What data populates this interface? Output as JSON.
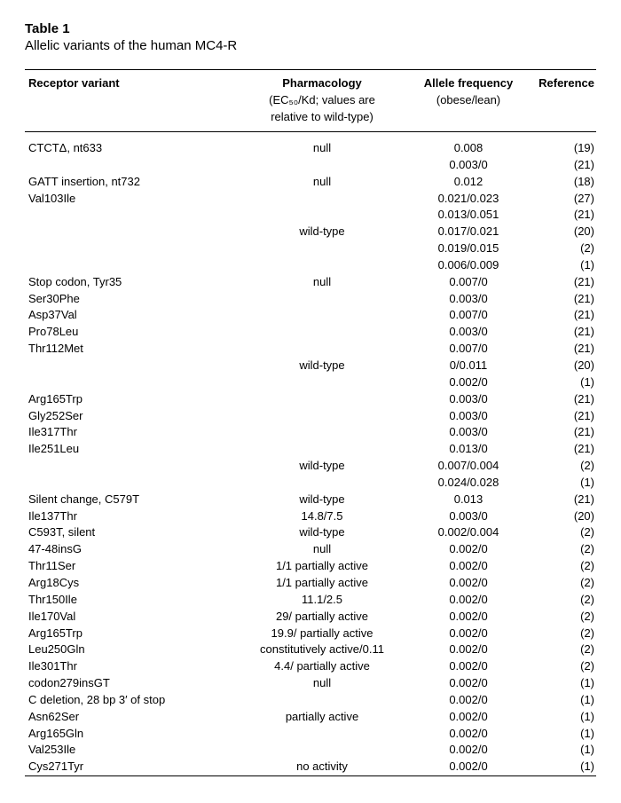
{
  "table": {
    "label": "Table 1",
    "caption": "Allelic variants of the human MC4-R",
    "headers": {
      "variant": "Receptor variant",
      "pharm": "Pharmacology",
      "pharm_sub1": "(EC₅₀/Kd; values are",
      "pharm_sub2": "relative to wild-type)",
      "freq": "Allele frequency",
      "freq_sub": "(obese/lean)",
      "ref": "Reference"
    },
    "rows": [
      {
        "variant": "CTCTΔ, nt633",
        "pharm": "null",
        "freq": "0.008",
        "ref": "(19)"
      },
      {
        "variant": "",
        "pharm": "",
        "freq": "0.003/0",
        "ref": "(21)"
      },
      {
        "variant": "GATT insertion, nt732",
        "pharm": "null",
        "freq": "0.012",
        "ref": "(18)"
      },
      {
        "variant": "Val103Ile",
        "pharm": "",
        "freq": "0.021/0.023",
        "ref": "(27)"
      },
      {
        "variant": "",
        "pharm": "",
        "freq": "0.013/0.051",
        "ref": "(21)"
      },
      {
        "variant": "",
        "pharm": "wild-type",
        "freq": "0.017/0.021",
        "ref": "(20)"
      },
      {
        "variant": "",
        "pharm": "",
        "freq": "0.019/0.015",
        "ref": "(2)"
      },
      {
        "variant": "",
        "pharm": "",
        "freq": "0.006/0.009",
        "ref": "(1)"
      },
      {
        "variant": "Stop codon, Tyr35",
        "pharm": "null",
        "freq": "0.007/0",
        "ref": "(21)"
      },
      {
        "variant": "Ser30Phe",
        "pharm": "",
        "freq": "0.003/0",
        "ref": "(21)"
      },
      {
        "variant": "Asp37Val",
        "pharm": "",
        "freq": "0.007/0",
        "ref": "(21)"
      },
      {
        "variant": "Pro78Leu",
        "pharm": "",
        "freq": "0.003/0",
        "ref": "(21)"
      },
      {
        "variant": "Thr112Met",
        "pharm": "",
        "freq": "0.007/0",
        "ref": "(21)"
      },
      {
        "variant": "",
        "pharm": "wild-type",
        "freq": "0/0.011",
        "ref": "(20)"
      },
      {
        "variant": "",
        "pharm": "",
        "freq": "0.002/0",
        "ref": "(1)"
      },
      {
        "variant": "Arg165Trp",
        "pharm": "",
        "freq": "0.003/0",
        "ref": "(21)"
      },
      {
        "variant": "Gly252Ser",
        "pharm": "",
        "freq": "0.003/0",
        "ref": "(21)"
      },
      {
        "variant": "Ile317Thr",
        "pharm": "",
        "freq": "0.003/0",
        "ref": "(21)"
      },
      {
        "variant": "Ile251Leu",
        "pharm": "",
        "freq": "0.013/0",
        "ref": "(21)"
      },
      {
        "variant": "",
        "pharm": "wild-type",
        "freq": "0.007/0.004",
        "ref": "(2)"
      },
      {
        "variant": "",
        "pharm": "",
        "freq": "0.024/0.028",
        "ref": "(1)"
      },
      {
        "variant": "Silent change, C579T",
        "pharm": "wild-type",
        "freq": "0.013",
        "ref": "(21)"
      },
      {
        "variant": "Ile137Thr",
        "pharm": "14.8/7.5",
        "freq": "0.003/0",
        "ref": "(20)"
      },
      {
        "variant": "C593T, silent",
        "pharm": "wild-type",
        "freq": "0.002/0.004",
        "ref": "(2)"
      },
      {
        "variant": "47-48insG",
        "pharm": "null",
        "freq": "0.002/0",
        "ref": "(2)"
      },
      {
        "variant": "Thr11Ser",
        "pharm": "1/1 partially active",
        "freq": "0.002/0",
        "ref": "(2)"
      },
      {
        "variant": "Arg18Cys",
        "pharm": "1/1 partially active",
        "freq": "0.002/0",
        "ref": "(2)"
      },
      {
        "variant": "Thr150Ile",
        "pharm": "11.1/2.5",
        "freq": "0.002/0",
        "ref": "(2)"
      },
      {
        "variant": "Ile170Val",
        "pharm": "29/ partially active",
        "freq": "0.002/0",
        "ref": "(2)"
      },
      {
        "variant": "Arg165Trp",
        "pharm": "19.9/ partially active",
        "freq": "0.002/0",
        "ref": "(2)"
      },
      {
        "variant": "Leu250Gln",
        "pharm": "constitutively active/0.11",
        "freq": "0.002/0",
        "ref": "(2)"
      },
      {
        "variant": "Ile301Thr",
        "pharm": "4.4/ partially active",
        "freq": "0.002/0",
        "ref": "(2)"
      },
      {
        "variant": "codon279insGT",
        "pharm": "null",
        "freq": "0.002/0",
        "ref": "(1)"
      },
      {
        "variant": "C deletion, 28 bp 3′ of stop",
        "pharm": "",
        "freq": "0.002/0",
        "ref": "(1)"
      },
      {
        "variant": "Asn62Ser",
        "pharm": "partially active",
        "freq": "0.002/0",
        "ref": "(1)"
      },
      {
        "variant": "Arg165Gln",
        "pharm": "",
        "freq": "0.002/0",
        "ref": "(1)"
      },
      {
        "variant": "Val253Ile",
        "pharm": "",
        "freq": "0.002/0",
        "ref": "(1)"
      },
      {
        "variant": "Cys271Tyr",
        "pharm": "no activity",
        "freq": "0.002/0",
        "ref": "(1)"
      }
    ]
  }
}
